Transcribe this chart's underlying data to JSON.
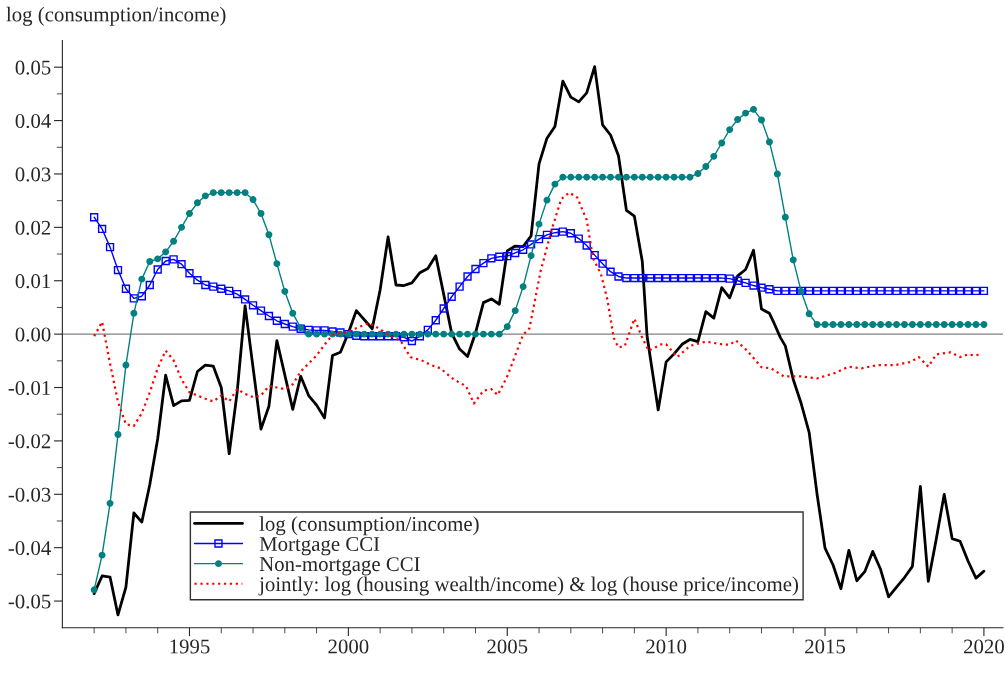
{
  "chart_data": {
    "type": "line",
    "ylabel": "log (consumption/income)",
    "xlim": [
      1991,
      2020.6
    ],
    "ylim": [
      -0.055,
      0.055
    ],
    "xticks": [
      {
        "value": 1992,
        "label": null
      },
      {
        "value": 1993,
        "label": null
      },
      {
        "value": 1994,
        "label": null
      },
      1995,
      {
        "value": 1996,
        "label": null
      },
      {
        "value": 1997,
        "label": null
      },
      {
        "value": 1998,
        "label": null
      },
      {
        "value": 1999,
        "label": null
      },
      2000,
      {
        "value": 2001,
        "label": null
      },
      {
        "value": 2002,
        "label": null
      },
      {
        "value": 2003,
        "label": null
      },
      {
        "value": 2004,
        "label": null
      },
      2005,
      {
        "value": 2006,
        "label": null
      },
      {
        "value": 2007,
        "label": null
      },
      {
        "value": 2008,
        "label": null
      },
      {
        "value": 2009,
        "label": null
      },
      2010,
      {
        "value": 2011,
        "label": null
      },
      {
        "value": 2012,
        "label": null
      },
      {
        "value": 2013,
        "label": null
      },
      {
        "value": 2014,
        "label": null
      },
      2015,
      {
        "value": 2016,
        "label": null
      },
      {
        "value": 2017,
        "label": null
      },
      {
        "value": 2018,
        "label": null
      },
      {
        "value": 2019,
        "label": null
      },
      2020
    ],
    "yticks": [
      -0.05,
      {
        "value": -0.045,
        "label": null
      },
      -0.04,
      {
        "value": -0.035,
        "label": null
      },
      -0.03,
      {
        "value": -0.025,
        "label": null
      },
      -0.02,
      {
        "value": -0.015,
        "label": null
      },
      -0.01,
      {
        "value": -0.005,
        "label": null
      },
      {
        "value": 0,
        "label": "0.00"
      },
      {
        "value": 0.005,
        "label": null
      },
      0.01,
      {
        "value": 0.015,
        "label": null
      },
      0.02,
      {
        "value": 0.025,
        "label": null
      },
      0.03,
      {
        "value": 0.035,
        "label": null
      },
      0.04,
      {
        "value": 0.045,
        "label": null
      },
      0.05
    ],
    "grid": false,
    "legend": "bottom left",
    "ref_lines": [
      {
        "axis": "y",
        "value": 0,
        "color": "#808080",
        "line_style": "solid"
      }
    ],
    "x": [
      1992,
      1992.25,
      1992.5,
      1992.75,
      1993,
      1993.25,
      1993.5,
      1993.75,
      1994,
      1994.25,
      1994.5,
      1994.75,
      1995,
      1995.25,
      1995.5,
      1995.75,
      1996,
      1996.25,
      1996.5,
      1996.75,
      1997,
      1997.25,
      1997.5,
      1997.75,
      1998,
      1998.25,
      1998.5,
      1998.75,
      1999,
      1999.25,
      1999.5,
      1999.75,
      2000,
      2000.25,
      2000.5,
      2000.75,
      2001,
      2001.25,
      2001.5,
      2001.75,
      2002,
      2002.25,
      2002.5,
      2002.75,
      2003,
      2003.25,
      2003.5,
      2003.75,
      2004,
      2004.25,
      2004.5,
      2004.75,
      2005,
      2005.25,
      2005.5,
      2005.75,
      2006,
      2006.25,
      2006.5,
      2006.75,
      2007,
      2007.25,
      2007.5,
      2007.75,
      2008,
      2008.25,
      2008.5,
      2008.75,
      2009,
      2009.25,
      2009.5,
      2009.75,
      2010,
      2010.25,
      2010.5,
      2010.75,
      2011,
      2011.25,
      2011.5,
      2011.75,
      2012,
      2012.25,
      2012.5,
      2012.75,
      2013,
      2013.25,
      2013.5,
      2013.75,
      2014,
      2014.25,
      2014.5,
      2014.75,
      2015,
      2015.25,
      2015.5,
      2015.75,
      2016,
      2016.25,
      2016.5,
      2016.75,
      2017,
      2017.25,
      2017.5,
      2017.75,
      2018,
      2018.25,
      2018.5,
      2018.75,
      2019,
      2019.25,
      2019.5,
      2019.75,
      2020
    ],
    "series": [
      {
        "name": "log (consumption/income)",
        "color": "#000000",
        "marker": "none",
        "line_style": "solid",
        "x": [
          1992,
          1992.25,
          1992.5,
          1992.75,
          1993,
          1993.25,
          1993.5,
          1993.75,
          1994,
          1994.25,
          1994.5,
          1994.75,
          1995,
          1995.25,
          1995.5,
          1995.75,
          1996,
          1996.25,
          1996.5,
          1996.75,
          1997.25,
          1997.5,
          1997.75,
          1998.25,
          1998.5,
          1998.75,
          1999,
          1999.25,
          1999.5,
          1999.75,
          2000,
          2000.25,
          2000.75,
          2001,
          2001.25,
          2001.5,
          2001.75,
          2002,
          2002.25,
          2002.5,
          2002.75,
          2003.25,
          2003.5,
          2003.75,
          2004,
          2004.25,
          2004.5,
          2004.75,
          2005,
          2005.25,
          2005.5,
          2005.75,
          2006,
          2006.25,
          2006.5,
          2006.75,
          2007,
          2007.25,
          2007.5,
          2007.75,
          2008,
          2008.25,
          2008.5,
          2008.75,
          2009,
          2009.25,
          2009.4,
          2009.75,
          2010,
          2010.25,
          2010.5,
          2010.75,
          2011,
          2011.25,
          2011.5,
          2011.75,
          2012,
          2012.25,
          2012.5,
          2012.75,
          2013,
          2013.25,
          2013.4,
          2013.6,
          2013.75,
          2014,
          2014.25,
          2014.5,
          2014.75,
          2015,
          2015.25,
          2015.5,
          2015.75,
          2016,
          2016.25,
          2016.5,
          2016.75,
          2017,
          2017.25,
          2017.5,
          2017.75,
          2018,
          2018.25,
          2018.5,
          2018.75,
          2019,
          2019.25,
          2019.5,
          2019.75,
          2020
        ],
        "values": [
          -0.0486,
          -0.0453,
          -0.0455,
          -0.0526,
          -0.0474,
          -0.0335,
          -0.0352,
          -0.0282,
          -0.0196,
          -0.0077,
          -0.0134,
          -0.0125,
          -0.0124,
          -0.007,
          -0.0058,
          -0.006,
          -0.01,
          -0.0224,
          -0.0109,
          0.0053,
          -0.0178,
          -0.0135,
          -0.0012,
          -0.0141,
          -0.0079,
          -0.0115,
          -0.0133,
          -0.0157,
          -0.004,
          -0.0034,
          0.0002,
          0.0044,
          0.001,
          0.0083,
          0.0182,
          0.0092,
          0.0091,
          0.0096,
          0.0115,
          0.0123,
          0.0147,
          0.0002,
          -0.0028,
          -0.0042,
          0.0002,
          0.0059,
          0.0066,
          0.0056,
          0.0156,
          0.0165,
          0.0164,
          0.0184,
          0.0319,
          0.0367,
          0.0389,
          0.0474,
          0.0444,
          0.0435,
          0.0452,
          0.0501,
          0.0392,
          0.0373,
          0.0334,
          0.0232,
          0.0221,
          0.0136,
          -0.0004,
          -0.0142,
          -0.0052,
          -0.0037,
          -0.0019,
          -0.001,
          -0.0014,
          0.0042,
          0.003,
          0.0087,
          0.0068,
          0.0109,
          0.0121,
          0.0157,
          0.0047,
          0.0039,
          0.002,
          -0.0007,
          -0.0022,
          -0.0085,
          -0.013,
          -0.0184,
          -0.03,
          -0.0401,
          -0.0432,
          -0.0477,
          -0.0405,
          -0.0462,
          -0.0445,
          -0.0407,
          -0.0441,
          -0.0492,
          -0.0474,
          -0.0456,
          -0.0435,
          -0.0285,
          -0.0463,
          -0.0384,
          -0.03,
          -0.0383,
          -0.0388,
          -0.0425,
          -0.0457,
          -0.0444
        ]
      },
      {
        "name": "Mortgage CCI",
        "color": "#0000ff",
        "marker": "square",
        "line_style": "solid",
        "values": [
          0.0219,
          0.0197,
          0.0163,
          0.012,
          0.0085,
          0.0067,
          0.0071,
          0.0092,
          0.0121,
          0.0137,
          0.014,
          0.0131,
          0.0114,
          0.0101,
          0.0092,
          0.0089,
          0.0085,
          0.0081,
          0.0075,
          0.0065,
          0.0054,
          0.0044,
          0.0034,
          0.0025,
          0.0019,
          0.0014,
          0.001,
          0.0008,
          0.0007,
          0.0007,
          0.0005,
          0.0003,
          0.0,
          -0.0003,
          -0.0004,
          -0.0004,
          -0.0004,
          -0.0004,
          -0.0004,
          -0.0006,
          -0.0013,
          -0.0004,
          0.0008,
          0.0026,
          0.0048,
          0.007,
          0.0089,
          0.0108,
          0.0122,
          0.0133,
          0.0142,
          0.0145,
          0.0146,
          0.0152,
          0.0158,
          0.0168,
          0.0178,
          0.0186,
          0.019,
          0.0192,
          0.0189,
          0.0179,
          0.0166,
          0.0148,
          0.0132,
          0.0117,
          0.0108,
          0.0105,
          0.0105,
          0.0105,
          0.0105,
          0.0105,
          0.0105,
          0.0105,
          0.0105,
          0.0105,
          0.0105,
          0.0105,
          0.0105,
          0.0105,
          0.0104,
          0.01,
          0.0096,
          0.0091,
          0.0087,
          0.0084,
          0.0081,
          0.0081,
          0.0081,
          0.0081,
          0.0081,
          0.0081,
          0.0081,
          0.0081,
          0.0081,
          0.0081,
          0.0081,
          0.0081,
          0.0081,
          0.0081,
          0.0081,
          0.0081,
          0.0081,
          0.0081,
          0.0081,
          0.0081,
          0.0081,
          0.0081,
          0.0081,
          0.0081,
          0.0081,
          0.0081,
          0.0081
        ]
      },
      {
        "name": "Non-mortgage CCI",
        "color": "#008080",
        "marker": "circle",
        "line_style": "solid",
        "values": [
          -0.0479,
          -0.0414,
          -0.0317,
          -0.0188,
          -0.0058,
          0.0039,
          0.0103,
          0.0136,
          0.0141,
          0.0154,
          0.0174,
          0.02,
          0.0226,
          0.0246,
          0.0259,
          0.0265,
          0.0265,
          0.0265,
          0.0265,
          0.0265,
          0.0252,
          0.0226,
          0.0186,
          0.0132,
          0.008,
          0.0039,
          0.0012,
          0.0,
          0.0,
          0.0,
          0.0,
          0.0,
          0.0,
          0.0,
          0.0,
          0.0,
          0.0,
          0.0,
          0.0,
          0.0,
          0.0,
          0.0,
          0.0,
          0.0,
          0.0,
          0.0,
          0.0,
          0.0,
          0.0,
          0.0,
          0.0,
          0.0,
          0.0014,
          0.0044,
          0.0089,
          0.0147,
          0.0206,
          0.0251,
          0.0281,
          0.0294,
          0.0294,
          0.0294,
          0.0294,
          0.0294,
          0.0294,
          0.0294,
          0.0294,
          0.0294,
          0.0294,
          0.0294,
          0.0294,
          0.0294,
          0.0294,
          0.0294,
          0.0294,
          0.0294,
          0.0301,
          0.0314,
          0.0333,
          0.0358,
          0.0383,
          0.0402,
          0.0414,
          0.0421,
          0.0401,
          0.036,
          0.03,
          0.0219,
          0.0139,
          0.008,
          0.0038,
          0.0018,
          0.0018,
          0.0018,
          0.0018,
          0.0018,
          0.0018,
          0.0018,
          0.0018,
          0.0018,
          0.0018,
          0.0018,
          0.0018,
          0.0018,
          0.0018,
          0.0018,
          0.0018,
          0.0018,
          0.0018,
          0.0018,
          0.0018,
          0.0018,
          0.0018
        ]
      },
      {
        "name": "jointly: log (housing wealth/income) & log (house price/income)",
        "color": "#ff0000",
        "marker": "none",
        "line_style": "dotted",
        "x": [
          1992,
          1992.25,
          1992.5,
          1992.75,
          1993,
          1993.25,
          1993.5,
          1993.75,
          1994,
          1994.25,
          1994.5,
          1994.75,
          1995,
          1995.25,
          1995.5,
          1995.75,
          1996,
          1996.25,
          1996.5,
          1996.75,
          1997,
          1997.25,
          1997.5,
          1997.75,
          1998,
          1998.25,
          1998.5,
          1998.75,
          1999,
          1999.25,
          1999.5,
          1999.75,
          2000,
          2000.65,
          2000.95,
          2001.35,
          2001.65,
          2001.95,
          2002.3,
          2002.6,
          2002.9,
          2003.25,
          2003.5,
          2003.7,
          2003.95,
          2004.25,
          2004.5,
          2004.7,
          2005,
          2005.25,
          2005.5,
          2005.7,
          2006.05,
          2006.4,
          2006.7,
          2006.95,
          2007.2,
          2007.5,
          2007.7,
          2007.95,
          2008.15,
          2008.35,
          2008.5,
          2008.7,
          2009,
          2009.25,
          2009.45,
          2009.85,
          2010,
          2010.35,
          2010.75,
          2011.25,
          2011.75,
          2012,
          2012.2,
          2012.55,
          2013,
          2013.3,
          2013.7,
          2014.25,
          2014.75,
          2015.3,
          2015.75,
          2016.15,
          2016.65,
          2017.2,
          2017.7,
          2017.95,
          2018.25,
          2018.5,
          2018.95,
          2019.25,
          2019.5,
          2019.7,
          2019.9
        ],
        "values": [
          -0.0004,
          0.0023,
          -0.0055,
          -0.0127,
          -0.0169,
          -0.0172,
          -0.0148,
          -0.0109,
          -0.0064,
          -0.0031,
          -0.0049,
          -0.0085,
          -0.0109,
          -0.0115,
          -0.0121,
          -0.0126,
          -0.0115,
          -0.0126,
          -0.0103,
          -0.0112,
          -0.0118,
          -0.0115,
          -0.0097,
          -0.01,
          -0.0103,
          -0.0094,
          -0.007,
          -0.0055,
          -0.004,
          -0.002,
          -0.0001,
          0.0002,
          0.0005,
          0.0021,
          0.0011,
          -0.0004,
          -0.0013,
          -0.0043,
          -0.0049,
          -0.0058,
          -0.0064,
          -0.0082,
          -0.0091,
          -0.0097,
          -0.013,
          -0.0106,
          -0.0103,
          -0.0114,
          -0.0079,
          -0.004,
          -0.0001,
          0.0011,
          0.0118,
          0.0196,
          0.0253,
          0.0265,
          0.0256,
          0.0214,
          0.0142,
          0.0112,
          0.0065,
          -0.0007,
          -0.0025,
          -0.0022,
          0.0029,
          -0.0007,
          -0.0031,
          -0.0019,
          -0.0019,
          -0.0043,
          -0.0022,
          -0.0014,
          -0.0019,
          -0.002,
          -0.0012,
          -0.0031,
          -0.0062,
          -0.0064,
          -0.0079,
          -0.0079,
          -0.0083,
          -0.0073,
          -0.0061,
          -0.0064,
          -0.0058,
          -0.0058,
          -0.0052,
          -0.0043,
          -0.0061,
          -0.0038,
          -0.0034,
          -0.0043,
          -0.0038,
          -0.004,
          -0.0038
        ]
      }
    ]
  }
}
